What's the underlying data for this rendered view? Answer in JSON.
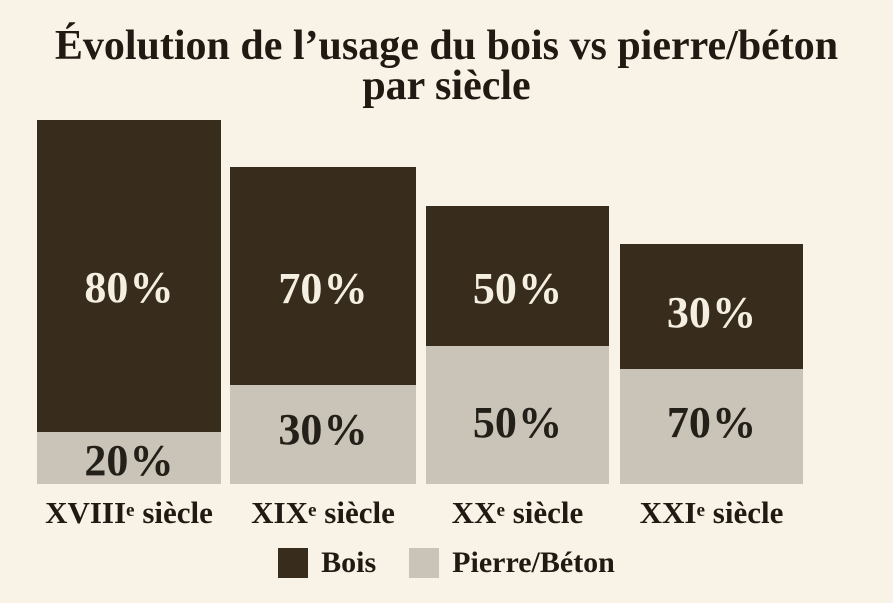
{
  "title": {
    "line1": "Évolution de l’usage du bois vs pierre/béton",
    "line2": "par siècle",
    "full": "Évolution de l’usage du bois vs pierre/béton par siècle"
  },
  "colors": {
    "background": "#f8f2e7",
    "bois": "#382c1d",
    "pierre_beton": "#c9c4b7",
    "text_dark": "#201a13",
    "text_cream": "#f5efe2"
  },
  "chart_data": {
    "type": "bar",
    "stacked": true,
    "title": "Évolution de l’usage du bois vs pierre/béton par siècle",
    "categories": [
      "XVIIIe siècle",
      "XIXe siècle",
      "XXe siècle",
      "XXIe siècle"
    ],
    "series": [
      {
        "name": "Bois",
        "color": "#382c1d",
        "values": [
          80,
          70,
          50,
          30
        ]
      },
      {
        "name": "Pierre/Béton",
        "color": "#c9c4b7",
        "values": [
          20,
          30,
          50,
          70
        ]
      }
    ],
    "unit": "%",
    "value_labels_shown": true,
    "legend_position": "bottom",
    "axes": "none",
    "note": "total bar heights decrease from left to right (stylized, not proportional to a shared 100% scale)"
  },
  "bars": [
    {
      "century": {
        "roman": "XVIII",
        "sup": "e",
        "rest": " siècle"
      },
      "bois_label": "80 %",
      "pierre_label": "20 %"
    },
    {
      "century": {
        "roman": "XIX",
        "sup": "e",
        "rest": " siècle"
      },
      "bois_label": "70 %",
      "pierre_label": "30 %"
    },
    {
      "century": {
        "roman": "XX",
        "sup": "e",
        "rest": " siècle"
      },
      "bois_label": "50 %",
      "pierre_label": "50 %"
    },
    {
      "century": {
        "roman": "XXI",
        "sup": "e",
        "rest": " siècle"
      },
      "bois_label": "30 %",
      "pierre_label": "70 %"
    }
  ],
  "legend": {
    "bois": "Bois",
    "pierre": "Pierre/Béton"
  }
}
